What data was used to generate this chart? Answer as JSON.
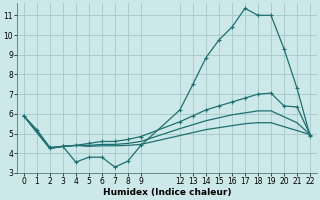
{
  "background_color": "#cce8e8",
  "grid_color": "#aacccc",
  "line_color": "#1e7070",
  "xlabel": "Humidex (Indice chaleur)",
  "xlim": [
    -0.5,
    22.5
  ],
  "ylim": [
    3.0,
    11.6
  ],
  "yticks": [
    3,
    4,
    5,
    6,
    7,
    8,
    9,
    10,
    11
  ],
  "xticks": [
    0,
    1,
    2,
    3,
    4,
    5,
    6,
    7,
    8,
    9,
    12,
    13,
    14,
    15,
    16,
    17,
    18,
    19,
    20,
    21,
    22
  ],
  "series1_x": [
    0,
    1,
    2,
    3,
    4,
    5,
    6,
    7,
    8,
    9,
    12,
    13,
    14,
    15,
    16,
    17,
    18,
    19,
    20,
    21,
    22
  ],
  "series1_y": [
    5.9,
    5.2,
    4.3,
    4.35,
    3.55,
    3.8,
    3.8,
    3.3,
    3.6,
    4.4,
    6.2,
    7.5,
    8.85,
    9.75,
    10.4,
    11.35,
    11.0,
    11.0,
    9.3,
    7.3,
    4.9
  ],
  "series2_x": [
    0,
    2,
    3,
    4,
    5,
    6,
    7,
    8,
    9,
    12,
    13,
    14,
    15,
    16,
    17,
    18,
    19,
    20,
    21,
    22
  ],
  "series2_y": [
    5.9,
    4.25,
    4.35,
    4.4,
    4.5,
    4.6,
    4.6,
    4.7,
    4.85,
    5.6,
    5.9,
    6.2,
    6.4,
    6.6,
    6.8,
    7.0,
    7.05,
    6.4,
    6.35,
    4.95
  ],
  "series3_x": [
    0,
    2,
    3,
    4,
    5,
    6,
    7,
    8,
    9,
    12,
    13,
    14,
    15,
    16,
    17,
    18,
    19,
    20,
    21,
    22
  ],
  "series3_y": [
    5.9,
    4.25,
    4.35,
    4.4,
    4.4,
    4.45,
    4.45,
    4.5,
    4.6,
    5.25,
    5.45,
    5.65,
    5.8,
    5.95,
    6.05,
    6.15,
    6.15,
    5.85,
    5.55,
    4.95
  ],
  "series4_x": [
    0,
    2,
    3,
    4,
    5,
    6,
    7,
    8,
    9,
    12,
    13,
    14,
    15,
    16,
    17,
    18,
    19,
    20,
    21,
    22
  ],
  "series4_y": [
    5.9,
    4.25,
    4.35,
    4.4,
    4.35,
    4.38,
    4.38,
    4.4,
    4.45,
    4.9,
    5.05,
    5.2,
    5.3,
    5.4,
    5.5,
    5.55,
    5.55,
    5.35,
    5.15,
    4.95
  ]
}
